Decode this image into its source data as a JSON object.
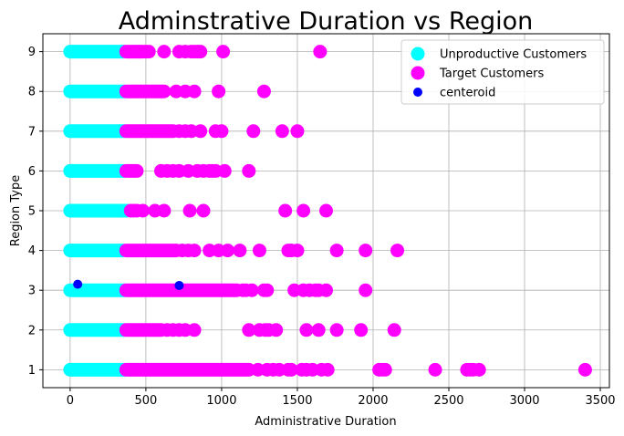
{
  "chart_data": {
    "type": "scatter",
    "title": "Adminstrative Duration vs Region",
    "xlabel": "Administrative Duration",
    "ylabel": "Region Type",
    "xlim": [
      -180,
      3560
    ],
    "ylim": [
      0.55,
      9.45
    ],
    "xticks": [
      0,
      500,
      1000,
      1500,
      2000,
      2500,
      3000,
      3500
    ],
    "yticks": [
      1,
      2,
      3,
      4,
      5,
      6,
      7,
      8,
      9
    ],
    "grid": true,
    "legend_position": "top-right",
    "series": [
      {
        "name": "Unproductive Customers",
        "color": "#00ffff",
        "bands": [
          {
            "y": 1,
            "x_from": 0,
            "x_to": 360
          },
          {
            "y": 2,
            "x_from": 0,
            "x_to": 355
          },
          {
            "y": 3,
            "x_from": 0,
            "x_to": 360
          },
          {
            "y": 4,
            "x_from": 0,
            "x_to": 350
          },
          {
            "y": 5,
            "x_from": 0,
            "x_to": 375
          },
          {
            "y": 6,
            "x_from": 0,
            "x_to": 355
          },
          {
            "y": 7,
            "x_from": 0,
            "x_to": 360
          },
          {
            "y": 8,
            "x_from": 0,
            "x_to": 360
          },
          {
            "y": 9,
            "x_from": 0,
            "x_to": 355
          }
        ]
      },
      {
        "name": "Target Customers",
        "color": "#ff00ff",
        "bands": [
          {
            "y": 1,
            "x_from": 370,
            "x_to": 1180
          },
          {
            "y": 2,
            "x_from": 370,
            "x_to": 600
          },
          {
            "y": 3,
            "x_from": 370,
            "x_to": 1100
          },
          {
            "y": 4,
            "x_from": 370,
            "x_to": 700
          },
          {
            "y": 6,
            "x_from": 370,
            "x_to": 440
          },
          {
            "y": 7,
            "x_from": 370,
            "x_to": 680
          },
          {
            "y": 8,
            "x_from": 370,
            "x_to": 620
          },
          {
            "y": 9,
            "x_from": 370,
            "x_to": 480
          }
        ],
        "points": [
          {
            "y": 1,
            "x": [
              1240,
              1300,
              1340,
              1380,
              1440,
              1460,
              1530,
              1560,
              1600,
              1660,
              1700,
              2040,
              2060,
              2080,
              2410,
              2620,
              2640,
              2660,
              2700,
              3400
            ]
          },
          {
            "y": 2,
            "x": [
              640,
              680,
              720,
              760,
              820,
              1180,
              1250,
              1290,
              1310,
              1360,
              1560,
              1640,
              1760,
              1920,
              2140
            ]
          },
          {
            "y": 3,
            "x": [
              1140,
              1160,
              1200,
              1280,
              1300,
              1480,
              1540,
              1580,
              1620,
              1640,
              1690,
              1950
            ]
          },
          {
            "y": 4,
            "x": [
              740,
              780,
              820,
              920,
              980,
              1040,
              1120,
              1250,
              1440,
              1460,
              1500,
              1760,
              1950,
              2160
            ]
          },
          {
            "y": 5,
            "x": [
              400,
              420,
              440,
              480,
              560,
              620,
              790,
              880,
              1420,
              1540,
              1690
            ]
          },
          {
            "y": 6,
            "x": [
              600,
              640,
              680,
              720,
              780,
              840,
              880,
              920,
              940,
              960,
              1020,
              1180
            ]
          },
          {
            "y": 7,
            "x": [
              720,
              760,
              800,
              860,
              960,
              1000,
              1210,
              1400,
              1500
            ]
          },
          {
            "y": 8,
            "x": [
              700,
              760,
              820,
              980,
              1280
            ]
          },
          {
            "y": 9,
            "x": [
              500,
              520,
              620,
              720,
              760,
              800,
              820,
              840,
              860,
              1010,
              1650
            ]
          }
        ]
      },
      {
        "name": "centeroid",
        "color": "#0000ff",
        "points_xy": [
          [
            50,
            3.15
          ],
          [
            720,
            3.12
          ]
        ]
      }
    ]
  }
}
